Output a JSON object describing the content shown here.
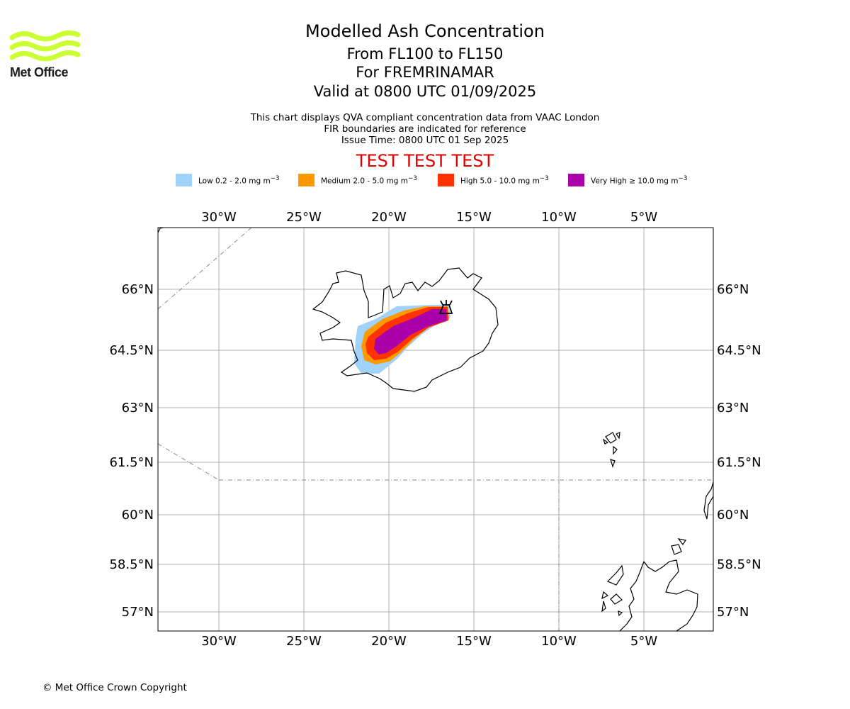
{
  "logo": {
    "text": "Met Office",
    "color": "#ccff33"
  },
  "title": {
    "line1": "Modelled Ash Concentration",
    "line2": "From FL100 to FL150",
    "line3": "For FREMRINAMAR",
    "line4": "Valid at 0800 UTC 01/09/2025"
  },
  "subtitle": {
    "line1": "This chart displays QVA compliant concentration data from VAAC London",
    "line2": "FIR boundaries are indicated for reference",
    "line3": "Issue Time: 0800 UTC 01 Sep 2025"
  },
  "test_banner": {
    "text": "TEST TEST TEST",
    "color": "#e00000"
  },
  "legend": [
    {
      "name": "Low",
      "range": "0.2 - 2.0 mg m",
      "color": "#a0d2fa"
    },
    {
      "name": "Medium",
      "range": "2.0 - 5.0 mg m",
      "color": "#ff9900"
    },
    {
      "name": "High",
      "range": "5.0 - 10.0 mg m",
      "color": "#ff3300"
    },
    {
      "name": "Very High",
      "range": "≥ 10.0 mg m",
      "color": "#aa00aa"
    }
  ],
  "map": {
    "lon_ticks": [
      "30°W",
      "25°W",
      "20°W",
      "15°W",
      "10°W",
      "5°W"
    ],
    "lat_ticks": [
      "66°N",
      "64.5°N",
      "63°N",
      "61.5°N",
      "60°N",
      "58.5°N",
      "57°N"
    ],
    "volcano_icon": "volcano-icon",
    "grid": true
  },
  "copyright": "© Met Office Crown Copyright"
}
